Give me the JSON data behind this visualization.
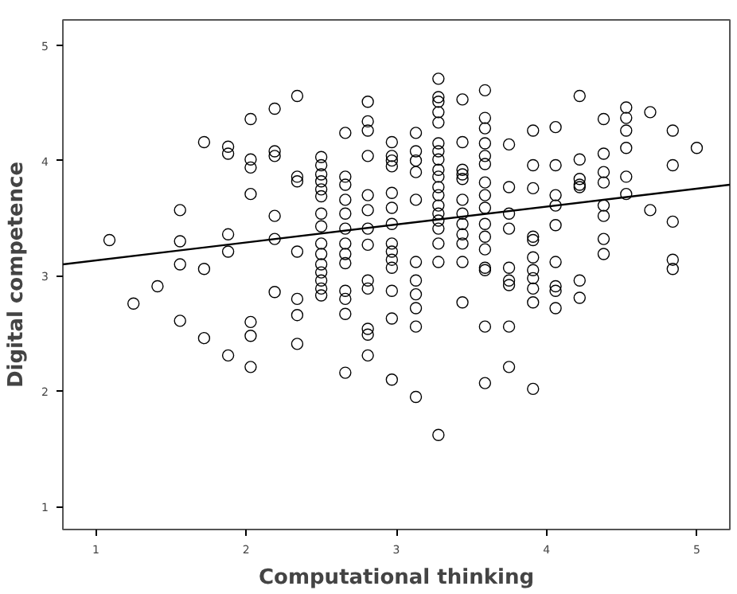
{
  "chart_data": {
    "type": "scatter",
    "xlabel": "Computational thinking",
    "ylabel": "Digital competence",
    "xlim": [
      0.78,
      5.22
    ],
    "ylim": [
      0.8,
      5.22
    ],
    "xticks": [
      1,
      2,
      3,
      4,
      5
    ],
    "yticks": [
      1,
      2,
      3,
      4,
      5
    ],
    "grid": false,
    "series": [
      {
        "color": "#000000",
        "marker": "circle",
        "x": [
          1.09,
          1.25,
          1.41,
          1.56,
          1.56,
          1.56,
          1.56,
          1.72,
          1.72,
          1.72,
          1.88,
          1.88,
          1.88,
          1.88,
          1.88,
          2.03,
          2.03,
          2.03,
          2.03,
          2.03,
          2.03,
          2.03,
          2.19,
          2.19,
          2.19,
          2.19,
          2.19,
          2.19,
          2.34,
          2.34,
          2.34,
          2.34,
          2.34,
          2.34,
          2.34,
          2.5,
          2.5,
          2.5,
          2.5,
          2.5,
          2.5,
          2.5,
          2.5,
          2.5,
          2.5,
          2.5,
          2.5,
          2.5,
          2.5,
          2.5,
          2.66,
          2.66,
          2.66,
          2.66,
          2.66,
          2.66,
          2.66,
          2.66,
          2.66,
          2.66,
          2.66,
          2.66,
          2.66,
          2.81,
          2.81,
          2.81,
          2.81,
          2.81,
          2.81,
          2.81,
          2.81,
          2.81,
          2.81,
          2.81,
          2.81,
          2.81,
          2.97,
          2.97,
          2.97,
          2.97,
          2.97,
          2.97,
          2.97,
          2.97,
          2.97,
          2.97,
          2.97,
          2.97,
          2.97,
          2.97,
          3.13,
          3.13,
          3.13,
          3.13,
          3.13,
          3.13,
          3.13,
          3.13,
          3.13,
          3.13,
          3.13,
          3.28,
          3.28,
          3.28,
          3.28,
          3.28,
          3.28,
          3.28,
          3.28,
          3.28,
          3.28,
          3.28,
          3.28,
          3.28,
          3.28,
          3.28,
          3.28,
          3.28,
          3.28,
          3.28,
          3.44,
          3.44,
          3.44,
          3.44,
          3.44,
          3.44,
          3.44,
          3.44,
          3.44,
          3.44,
          3.44,
          3.44,
          3.59,
          3.59,
          3.59,
          3.59,
          3.59,
          3.59,
          3.59,
          3.59,
          3.59,
          3.59,
          3.59,
          3.59,
          3.59,
          3.59,
          3.59,
          3.59,
          3.75,
          3.75,
          3.75,
          3.75,
          3.75,
          3.75,
          3.75,
          3.75,
          3.75,
          3.91,
          3.91,
          3.91,
          3.91,
          3.91,
          3.91,
          3.91,
          3.91,
          3.91,
          3.91,
          3.91,
          4.06,
          4.06,
          4.06,
          4.06,
          4.06,
          4.06,
          4.06,
          4.06,
          4.06,
          4.22,
          4.22,
          4.22,
          4.22,
          4.22,
          4.22,
          4.22,
          4.38,
          4.38,
          4.38,
          4.38,
          4.38,
          4.38,
          4.38,
          4.38,
          4.53,
          4.53,
          4.53,
          4.53,
          4.53,
          4.53,
          4.69,
          4.69,
          4.84,
          4.84,
          4.84,
          4.84,
          4.84,
          5.0
        ],
        "values": [
          3.31,
          2.76,
          2.91,
          3.57,
          3.3,
          3.1,
          2.61,
          4.16,
          3.06,
          2.46,
          4.12,
          4.06,
          3.36,
          3.21,
          2.31,
          4.36,
          4.01,
          3.94,
          3.71,
          2.6,
          2.48,
          2.21,
          4.45,
          4.08,
          4.04,
          3.52,
          3.32,
          2.86,
          4.56,
          3.86,
          3.82,
          3.21,
          2.8,
          2.66,
          2.41,
          4.03,
          3.96,
          3.88,
          3.82,
          3.75,
          3.69,
          3.54,
          3.43,
          3.28,
          3.19,
          3.1,
          3.03,
          2.96,
          2.89,
          2.83,
          4.24,
          3.86,
          3.79,
          3.66,
          3.54,
          3.41,
          3.28,
          3.19,
          3.11,
          2.87,
          2.8,
          2.67,
          2.16,
          4.51,
          4.34,
          4.26,
          4.04,
          3.7,
          3.57,
          3.41,
          3.27,
          2.96,
          2.89,
          2.54,
          2.49,
          2.31,
          4.16,
          4.04,
          4.0,
          3.95,
          3.72,
          3.59,
          3.45,
          3.28,
          3.21,
          3.14,
          3.07,
          2.87,
          2.63,
          2.1,
          4.24,
          4.08,
          4.0,
          3.9,
          3.66,
          3.12,
          2.96,
          2.84,
          2.72,
          2.56,
          1.95,
          4.71,
          4.55,
          4.51,
          4.42,
          4.33,
          4.15,
          4.08,
          4.01,
          3.92,
          3.86,
          3.77,
          3.7,
          3.61,
          3.54,
          3.48,
          3.41,
          3.28,
          3.12,
          1.62,
          4.53,
          4.16,
          3.92,
          3.88,
          3.84,
          3.66,
          3.54,
          3.45,
          3.36,
          3.28,
          3.12,
          2.77,
          4.61,
          4.37,
          4.28,
          4.15,
          4.04,
          3.97,
          3.81,
          3.7,
          3.59,
          3.45,
          3.34,
          3.23,
          3.07,
          3.05,
          2.56,
          2.07,
          4.14,
          3.77,
          3.54,
          3.41,
          3.07,
          2.96,
          2.92,
          2.56,
          2.21,
          4.26,
          3.96,
          3.76,
          3.34,
          3.31,
          3.16,
          3.05,
          2.98,
          2.89,
          2.77,
          2.02,
          4.29,
          3.96,
          3.7,
          3.61,
          3.44,
          3.12,
          2.91,
          2.87,
          2.72,
          4.56,
          4.01,
          3.84,
          3.79,
          3.77,
          2.96,
          2.81,
          4.36,
          4.06,
          3.9,
          3.81,
          3.61,
          3.52,
          3.32,
          3.19,
          4.46,
          4.37,
          4.26,
          4.11,
          3.86,
          3.71,
          4.42,
          3.57,
          4.26,
          3.96,
          3.47,
          3.14,
          3.06,
          4.11
        ]
      },
      {
        "type": "line",
        "color": "#000000",
        "marker": "none",
        "x": [
          0.78,
          5.22
        ],
        "values": [
          3.1,
          3.79
        ]
      }
    ]
  }
}
